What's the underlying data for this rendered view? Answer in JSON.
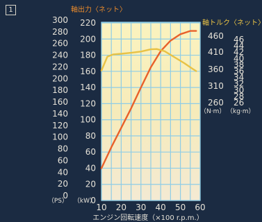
{
  "figure_number": "1",
  "chart_data": {
    "type": "line",
    "xlabel": "エンジン回転速度（×100 r.p.m.）",
    "x_ticks": [
      "10",
      "20",
      "30",
      "40",
      "50",
      "60"
    ],
    "xlim": [
      10,
      60
    ],
    "axes": {
      "ps_ticks": [
        "0",
        "20",
        "40",
        "60",
        "80",
        "100",
        "120",
        "140",
        "160",
        "180",
        "200",
        "220",
        "240",
        "260",
        "280",
        "300"
      ],
      "ps_unit": "（PS）",
      "kw_ticks": [
        "0",
        "20",
        "40",
        "60",
        "80",
        "100",
        "120",
        "140",
        "160",
        "180",
        "200",
        "220"
      ],
      "kw_unit": "（kW）",
      "nm_ticks": [
        "460",
        "410",
        "360",
        "310",
        "260"
      ],
      "nm_unit": "（N·m）",
      "kgm_ticks": [
        "46",
        "44",
        "42",
        "40",
        "38",
        "36",
        "34",
        "32",
        "30",
        "28",
        "26"
      ],
      "kgm_unit": "（kg·m）",
      "kw_range": [
        0,
        220
      ],
      "kgm_range": [
        26,
        47
      ]
    },
    "series": [
      {
        "name": "軸出力〈ネット〉",
        "color": "#e8602a",
        "axis": "kW",
        "x": [
          10,
          15,
          20,
          25,
          30,
          35,
          40,
          45,
          50,
          55,
          58
        ],
        "y": [
          40,
          66,
          90,
          114,
          140,
          165,
          185,
          198,
          206,
          210,
          210
        ]
      },
      {
        "name": "軸トルク〈ネット〉",
        "color": "#e8c245",
        "axis": "kg·m",
        "x": [
          10,
          13,
          16,
          20,
          25,
          30,
          35,
          38,
          42,
          47,
          52,
          56,
          58
        ],
        "y": [
          36.2,
          40.6,
          41.3,
          41.5,
          41.8,
          42.2,
          42.9,
          43.0,
          42.3,
          40.4,
          38.5,
          36.8,
          36.0
        ]
      }
    ]
  }
}
